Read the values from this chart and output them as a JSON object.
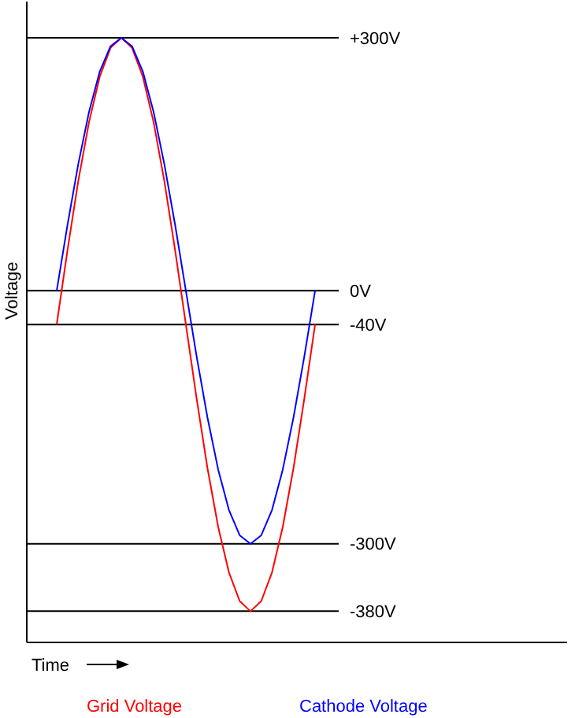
{
  "chart_data": {
    "type": "line",
    "xlabel": "Time",
    "ylabel": "Voltage",
    "categories": [
      null,
      null,
      null,
      null,
      null,
      null,
      null,
      null,
      null,
      null,
      null,
      null,
      null,
      null,
      null,
      null,
      null,
      null,
      null,
      null,
      null,
      null,
      null,
      null,
      null
    ],
    "series": [
      {
        "name": "Grid Voltage",
        "color": "#ff0000",
        "values": [
          -40,
          48,
          130,
          200,
          254,
          288,
          300,
          288,
          254,
          200,
          130,
          48,
          -40,
          -128,
          -210,
          -280,
          -334,
          -368,
          -380,
          -368,
          -334,
          -280,
          -210,
          -128,
          -40
        ]
      },
      {
        "name": "Cathode Voltage",
        "color": "#0000ff",
        "values": [
          0,
          78,
          150,
          212,
          260,
          290,
          300,
          290,
          260,
          212,
          150,
          78,
          0,
          -78,
          -150,
          -212,
          -260,
          -290,
          -300,
          -290,
          -260,
          -212,
          -150,
          -78,
          0
        ]
      }
    ],
    "ylim": [
      -417,
      300
    ],
    "yticks": [
      {
        "value": 300,
        "label": "+300V"
      },
      {
        "value": 0,
        "label": "0V"
      },
      {
        "value": -40,
        "label": "-40V"
      },
      {
        "value": -300,
        "label": "-300V"
      },
      {
        "value": -380,
        "label": "-380V"
      }
    ],
    "tick_labels": "y",
    "legend": "bottom",
    "marker": "none",
    "line_style": "solid",
    "grid": "y"
  }
}
